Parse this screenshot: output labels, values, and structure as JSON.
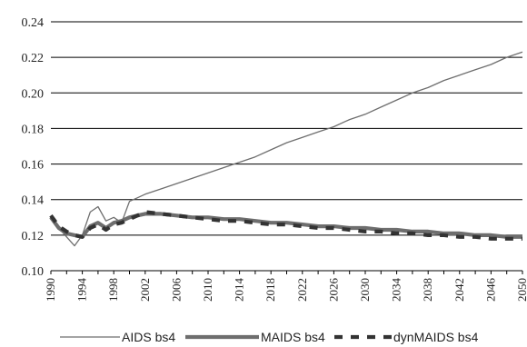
{
  "chart_data": {
    "type": "line",
    "title": "",
    "xlabel": "",
    "ylabel": "",
    "xlim": [
      1990,
      2050
    ],
    "ylim": [
      0.1,
      0.24
    ],
    "grid": true,
    "legend_placement": "bottom",
    "x": [
      1990,
      1991,
      1992,
      1993,
      1994,
      1995,
      1996,
      1997,
      1998,
      1999,
      2000,
      2001,
      2002,
      2004,
      2006,
      2008,
      2010,
      2012,
      2014,
      2016,
      2018,
      2020,
      2022,
      2024,
      2026,
      2028,
      2030,
      2032,
      2034,
      2036,
      2038,
      2040,
      2042,
      2044,
      2046,
      2048,
      2050
    ],
    "x_ticks": [
      1990,
      1994,
      1998,
      2002,
      2006,
      2010,
      2014,
      2018,
      2022,
      2026,
      2030,
      2034,
      2038,
      2042,
      2046,
      2050
    ],
    "x_tick_labels": [
      "1990",
      "1994",
      "1998",
      "2002",
      "2006",
      "2010",
      "2014",
      "2018",
      "2022",
      "2026",
      "2030",
      "2034",
      "2038",
      "2042",
      "2046",
      "2050"
    ],
    "y_ticks": [
      0.1,
      0.12,
      0.14,
      0.16,
      0.18,
      0.2,
      0.22,
      0.24
    ],
    "y_tick_labels": [
      "0.10",
      "0.12",
      "0.14",
      "0.16",
      "0.18",
      "0.20",
      "0.22",
      "0.24"
    ],
    "series": [
      {
        "name": "AIDS bs4",
        "color": "#6e6e6e",
        "style": "thin",
        "values": [
          0.13,
          0.124,
          0.119,
          0.114,
          0.12,
          0.133,
          0.136,
          0.128,
          0.13,
          0.127,
          0.139,
          0.141,
          0.143,
          0.146,
          0.149,
          0.152,
          0.155,
          0.158,
          0.161,
          0.164,
          0.168,
          0.172,
          0.175,
          0.178,
          0.181,
          0.185,
          0.188,
          0.192,
          0.196,
          0.2,
          0.203,
          0.207,
          0.21,
          0.213,
          0.216,
          0.22,
          0.223
        ]
      },
      {
        "name": "MAIDS bs4",
        "color": "#6e6e6e",
        "style": "thick",
        "values": [
          0.13,
          0.124,
          0.121,
          0.12,
          0.119,
          0.125,
          0.127,
          0.124,
          0.127,
          0.128,
          0.13,
          0.131,
          0.132,
          0.132,
          0.131,
          0.13,
          0.13,
          0.129,
          0.129,
          0.128,
          0.127,
          0.127,
          0.126,
          0.125,
          0.125,
          0.124,
          0.124,
          0.123,
          0.123,
          0.122,
          0.122,
          0.121,
          0.121,
          0.12,
          0.12,
          0.119,
          0.119
        ]
      },
      {
        "name": "dynMAIDS bs4",
        "color": "#333333",
        "style": "dashed",
        "values": [
          0.131,
          0.125,
          0.122,
          0.12,
          0.119,
          0.124,
          0.126,
          0.123,
          0.126,
          0.127,
          0.129,
          0.131,
          0.133,
          0.132,
          0.131,
          0.13,
          0.129,
          0.128,
          0.128,
          0.127,
          0.126,
          0.126,
          0.125,
          0.124,
          0.124,
          0.123,
          0.122,
          0.122,
          0.121,
          0.121,
          0.12,
          0.12,
          0.119,
          0.119,
          0.118,
          0.118,
          0.118
        ]
      }
    ]
  }
}
